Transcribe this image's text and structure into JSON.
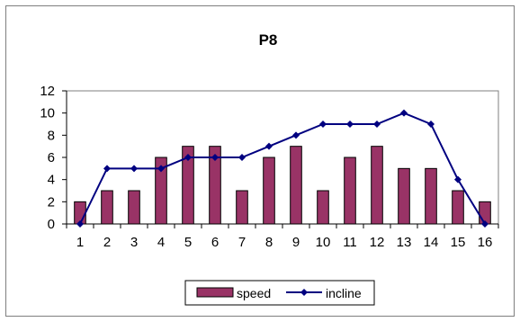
{
  "chart_data": {
    "type": "bar",
    "title": "P8",
    "xlabel": "",
    "ylabel": "",
    "categories": [
      "1",
      "2",
      "3",
      "4",
      "5",
      "6",
      "7",
      "8",
      "9",
      "10",
      "11",
      "12",
      "13",
      "14",
      "15",
      "16"
    ],
    "ylim": [
      0,
      12
    ],
    "yticks": [
      "0",
      "2",
      "4",
      "6",
      "8",
      "10",
      "12"
    ],
    "grid": false,
    "legend_position": "bottom",
    "series": [
      {
        "name": "speed",
        "type": "bar",
        "color": "#993366",
        "values": [
          2,
          3,
          3,
          6,
          7,
          7,
          3,
          6,
          7,
          3,
          6,
          7,
          5,
          5,
          3,
          2
        ]
      },
      {
        "name": "incline",
        "type": "line",
        "color": "#000080",
        "values": [
          0,
          5,
          5,
          5,
          6,
          6,
          6,
          7,
          8,
          9,
          9,
          9,
          10,
          9,
          4,
          0
        ]
      }
    ]
  }
}
